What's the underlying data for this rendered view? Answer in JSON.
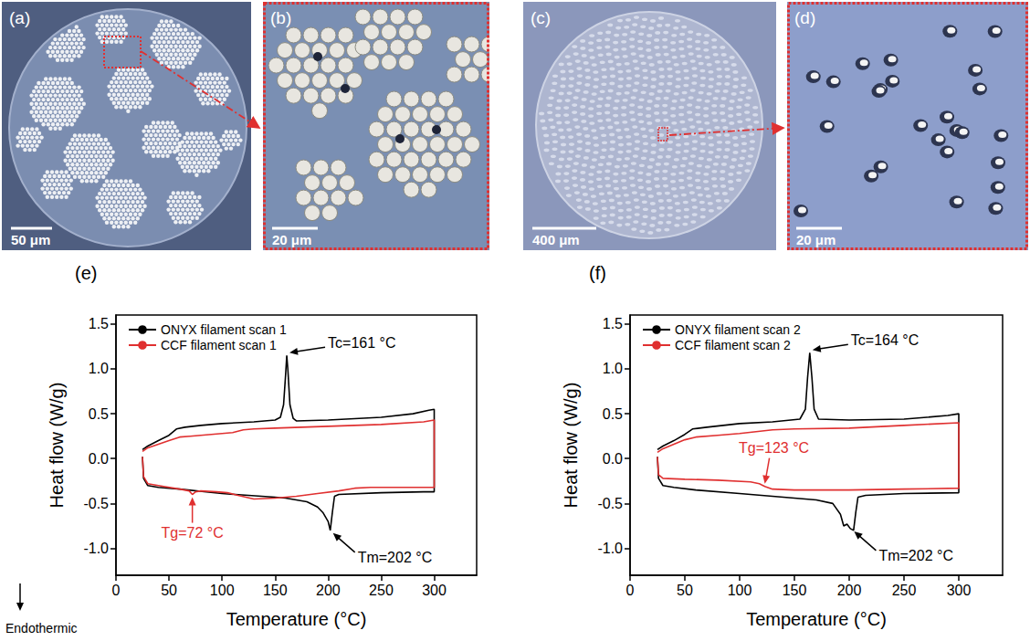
{
  "images": [
    {
      "label": "(a)",
      "scale_bar": "50 μm"
    },
    {
      "label": "(b)",
      "scale_bar": "20 μm"
    },
    {
      "label": "(c)",
      "scale_bar": "400 μm"
    },
    {
      "label": "(d)",
      "scale_bar": "20 μm"
    }
  ],
  "chart_data": [
    {
      "type": "line",
      "title": "(e)",
      "xlabel": "Temperature (°C)",
      "ylabel": "Heat flow (W/g)",
      "xlim": [
        0,
        340
      ],
      "xticks": [
        0,
        50,
        100,
        150,
        200,
        250,
        300
      ],
      "ylim": [
        -1.3,
        1.6
      ],
      "yticks": [
        {
          "value": -1,
          "label": "-1.0"
        },
        -0.5,
        {
          "value": 0,
          "label": "0.0"
        },
        0.5,
        {
          "value": 1,
          "label": "1.0"
        },
        1.5
      ],
      "grid": false,
      "legend": "upper left",
      "series": [
        {
          "name": "ONYX filament scan 1",
          "color": "#000000",
          "x": [
            25,
            30,
            40,
            50,
            57,
            65,
            80,
            100,
            130,
            150,
            155,
            158,
            160,
            161,
            162,
            164,
            167,
            170,
            200,
            250,
            280,
            295,
            300,
            300,
            290,
            250,
            210,
            206,
            204,
            202,
            200,
            195,
            190,
            180,
            160,
            150,
            100,
            60,
            40,
            30,
            26,
            25
          ],
          "values": [
            0.1,
            0.14,
            0.2,
            0.26,
            0.33,
            0.35,
            0.37,
            0.39,
            0.41,
            0.43,
            0.46,
            0.6,
            0.95,
            1.15,
            1.0,
            0.6,
            0.45,
            0.42,
            0.43,
            0.46,
            0.5,
            0.54,
            0.55,
            -0.37,
            -0.37,
            -0.38,
            -0.4,
            -0.42,
            -0.6,
            -0.8,
            -0.7,
            -0.6,
            -0.54,
            -0.48,
            -0.44,
            -0.43,
            -0.39,
            -0.34,
            -0.32,
            -0.3,
            -0.22,
            0.02
          ]
        },
        {
          "name": "CCF filament scan 1",
          "color": "#e03030",
          "x": [
            25,
            30,
            40,
            50,
            60,
            70,
            90,
            110,
            120,
            130,
            150,
            200,
            250,
            290,
            300,
            300,
            270,
            240,
            225,
            210,
            190,
            170,
            150,
            130,
            115,
            105,
            95,
            80,
            75,
            72,
            69,
            60,
            45,
            30,
            26,
            25
          ],
          "values": [
            0.08,
            0.12,
            0.16,
            0.2,
            0.24,
            0.25,
            0.27,
            0.29,
            0.32,
            0.33,
            0.34,
            0.36,
            0.38,
            0.41,
            0.43,
            -0.32,
            -0.32,
            -0.32,
            -0.33,
            -0.36,
            -0.39,
            -0.42,
            -0.44,
            -0.45,
            -0.41,
            -0.38,
            -0.37,
            -0.36,
            -0.37,
            -0.4,
            -0.36,
            -0.34,
            -0.31,
            -0.28,
            -0.2,
            0.02
          ]
        }
      ],
      "annotations": [
        {
          "text": "Tc=161 °C",
          "x": 161,
          "y": 1.15,
          "color": "#000000"
        },
        {
          "text": "Tm=202 °C",
          "x": 202,
          "y": -0.8,
          "color": "#000000"
        },
        {
          "text": "Tg=72 °C",
          "x": 72,
          "y": -0.4,
          "color": "#e03030"
        },
        {
          "text": "Endothermic",
          "color": "#000000"
        }
      ]
    },
    {
      "type": "line",
      "title": "(f)",
      "xlabel": "Temperature (°C)",
      "ylabel": "Heat flow (W/g)",
      "xlim": [
        0,
        340
      ],
      "xticks": [
        0,
        50,
        100,
        150,
        200,
        250,
        300
      ],
      "ylim": [
        -1.3,
        1.6
      ],
      "yticks": [
        {
          "value": -1,
          "label": "-1.0"
        },
        -0.5,
        {
          "value": 0,
          "label": "0.0"
        },
        0.5,
        {
          "value": 1,
          "label": "1.0"
        },
        1.5
      ],
      "grid": false,
      "legend": "upper left",
      "series": [
        {
          "name": "ONYX filament scan 2",
          "color": "#000000",
          "x": [
            25,
            30,
            40,
            50,
            57,
            70,
            100,
            130,
            155,
            160,
            162,
            164,
            166,
            168,
            172,
            200,
            250,
            290,
            300,
            300,
            250,
            215,
            208,
            206,
            204,
            201,
            198,
            195,
            192,
            185,
            170,
            150,
            100,
            60,
            40,
            30,
            26,
            25
          ],
          "values": [
            0.1,
            0.14,
            0.2,
            0.27,
            0.33,
            0.35,
            0.39,
            0.41,
            0.44,
            0.55,
            0.9,
            1.18,
            0.9,
            0.55,
            0.44,
            0.43,
            0.44,
            0.48,
            0.5,
            -0.38,
            -0.39,
            -0.41,
            -0.43,
            -0.6,
            -0.8,
            -0.78,
            -0.73,
            -0.75,
            -0.62,
            -0.5,
            -0.46,
            -0.44,
            -0.39,
            -0.35,
            -0.32,
            -0.3,
            -0.22,
            0.02
          ]
        },
        {
          "name": "CCF filament scan 2",
          "color": "#e03030",
          "x": [
            25,
            30,
            40,
            50,
            60,
            80,
            100,
            115,
            130,
            150,
            200,
            250,
            300,
            300,
            250,
            200,
            150,
            130,
            123,
            118,
            110,
            80,
            50,
            30,
            26,
            25
          ],
          "values": [
            0.07,
            0.11,
            0.16,
            0.21,
            0.24,
            0.26,
            0.28,
            0.3,
            0.32,
            0.33,
            0.34,
            0.37,
            0.4,
            -0.33,
            -0.34,
            -0.35,
            -0.35,
            -0.34,
            -0.31,
            -0.28,
            -0.26,
            -0.24,
            -0.23,
            -0.22,
            -0.18,
            0.02
          ]
        }
      ],
      "annotations": [
        {
          "text": "Tc=164 °C",
          "x": 164,
          "y": 1.18,
          "color": "#000000"
        },
        {
          "text": "Tm=202 °C",
          "x": 202,
          "y": -0.78,
          "color": "#000000"
        },
        {
          "text": "Tg=123 °C",
          "x": 123,
          "y": -0.31,
          "color": "#e03030"
        }
      ]
    }
  ]
}
